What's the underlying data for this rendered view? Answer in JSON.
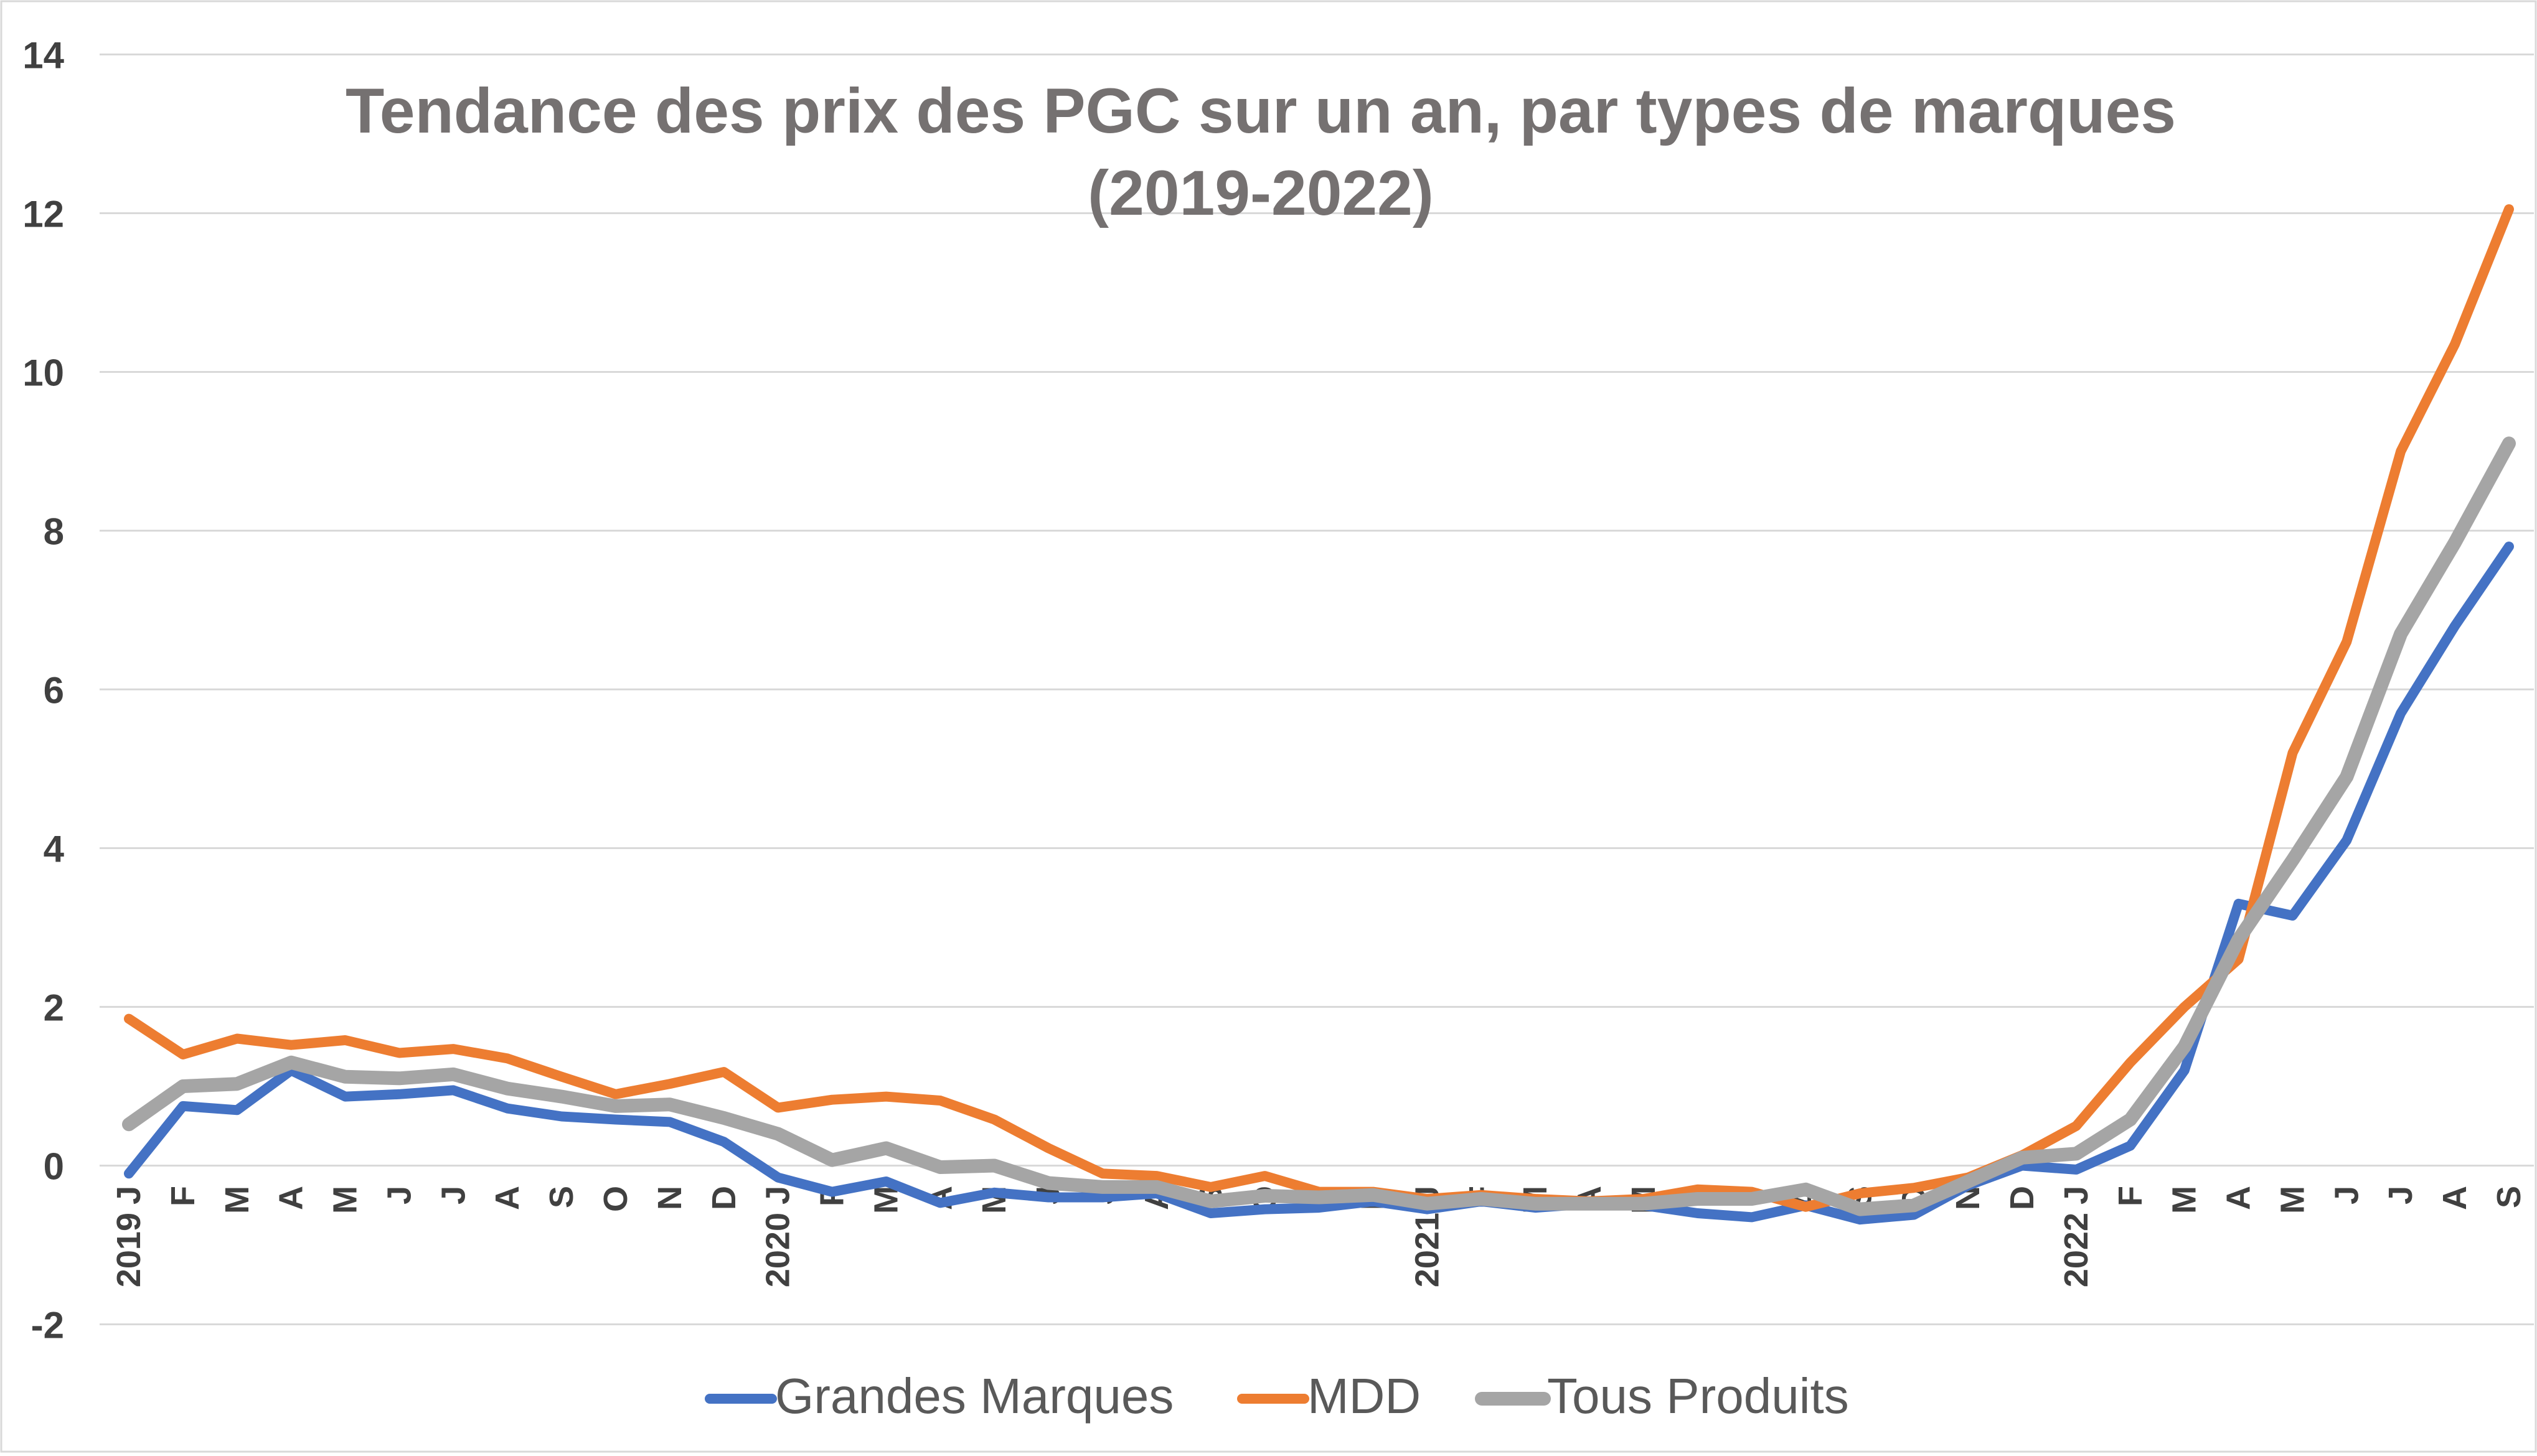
{
  "chart_data": {
    "type": "line",
    "title_line1": "Tendance des prix des PGC sur un an, par types de marques",
    "title_line2": "(2019-2022)",
    "xlabel": "",
    "ylabel": "",
    "ylim": [
      -2,
      14
    ],
    "yticks": [
      -2,
      0,
      2,
      4,
      6,
      8,
      10,
      12,
      14
    ],
    "grid": true,
    "legend_position": "bottom",
    "month_labels": [
      "J",
      "F",
      "M",
      "A",
      "M",
      "J",
      "J",
      "A",
      "S",
      "O",
      "N",
      "D",
      "J",
      "F",
      "M",
      "A",
      "M",
      "J",
      "J",
      "A",
      "S",
      "O",
      "N",
      "D",
      "J",
      "F",
      "M",
      "A",
      "M",
      "J",
      "J",
      "A",
      "S",
      "O",
      "N",
      "D",
      "J",
      "F",
      "M",
      "A",
      "M",
      "J",
      "J",
      "A",
      "S"
    ],
    "year_labels": [
      {
        "index": 0,
        "label": "2019"
      },
      {
        "index": 12,
        "label": "2020"
      },
      {
        "index": 24,
        "label": "2021"
      },
      {
        "index": 36,
        "label": "2022"
      }
    ],
    "series": [
      {
        "name": "Grandes Marques",
        "color": "#4472c4",
        "values": [
          -0.1,
          0.75,
          0.7,
          1.2,
          0.87,
          0.9,
          0.95,
          0.72,
          0.62,
          0.58,
          0.55,
          0.3,
          -0.15,
          -0.33,
          -0.2,
          -0.47,
          -0.34,
          -0.4,
          -0.4,
          -0.35,
          -0.6,
          -0.55,
          -0.53,
          -0.45,
          -0.55,
          -0.45,
          -0.53,
          -0.48,
          -0.5,
          -0.6,
          -0.65,
          -0.5,
          -0.68,
          -0.62,
          -0.25,
          0.0,
          -0.05,
          0.25,
          1.2,
          3.3,
          3.15,
          4.1,
          5.7,
          6.8,
          7.8
        ]
      },
      {
        "name": "MDD",
        "color": "#ed7d31",
        "values": [
          1.85,
          1.4,
          1.6,
          1.52,
          1.58,
          1.42,
          1.47,
          1.35,
          1.12,
          0.9,
          1.03,
          1.18,
          0.73,
          0.83,
          0.87,
          0.82,
          0.58,
          0.22,
          -0.1,
          -0.13,
          -0.27,
          -0.13,
          -0.33,
          -0.33,
          -0.42,
          -0.37,
          -0.42,
          -0.45,
          -0.42,
          -0.3,
          -0.33,
          -0.52,
          -0.35,
          -0.28,
          -0.15,
          0.13,
          0.5,
          1.3,
          2.0,
          2.6,
          5.2,
          6.6,
          9.0,
          10.35,
          12.05
        ]
      },
      {
        "name": "Tous Produits",
        "color": "#a5a5a5",
        "values": [
          0.52,
          1.0,
          1.03,
          1.3,
          1.12,
          1.1,
          1.15,
          0.97,
          0.87,
          0.75,
          0.77,
          0.6,
          0.4,
          0.07,
          0.22,
          -0.02,
          0.0,
          -0.22,
          -0.27,
          -0.27,
          -0.45,
          -0.38,
          -0.4,
          -0.37,
          -0.48,
          -0.42,
          -0.48,
          -0.48,
          -0.48,
          -0.42,
          -0.42,
          -0.3,
          -0.55,
          -0.5,
          -0.2,
          0.1,
          0.15,
          0.58,
          1.5,
          2.85,
          3.85,
          4.9,
          6.7,
          7.85,
          9.1
        ]
      }
    ]
  }
}
